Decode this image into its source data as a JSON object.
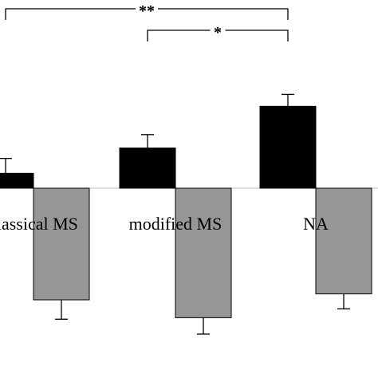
{
  "chart_data": {
    "type": "bar",
    "categories": [
      "classical MS",
      "modified MS",
      "NA"
    ],
    "series": [
      {
        "values": [
          0.1,
          0.27,
          0.55
        ],
        "errors": [
          0.1,
          0.09,
          0.08
        ],
        "color": "#000000"
      },
      {
        "values": [
          -0.75,
          -0.87,
          -0.71
        ],
        "errors": [
          0.13,
          0.11,
          0.1
        ],
        "color": "#969696"
      }
    ],
    "ylim": [
      -1.2,
      1.25
    ],
    "grid": false,
    "legend": "none",
    "significance": [
      {
        "from": "classical MS",
        "to": "NA",
        "label": "**"
      },
      {
        "from": "modified MS",
        "to": "NA",
        "label": "*"
      }
    ]
  }
}
